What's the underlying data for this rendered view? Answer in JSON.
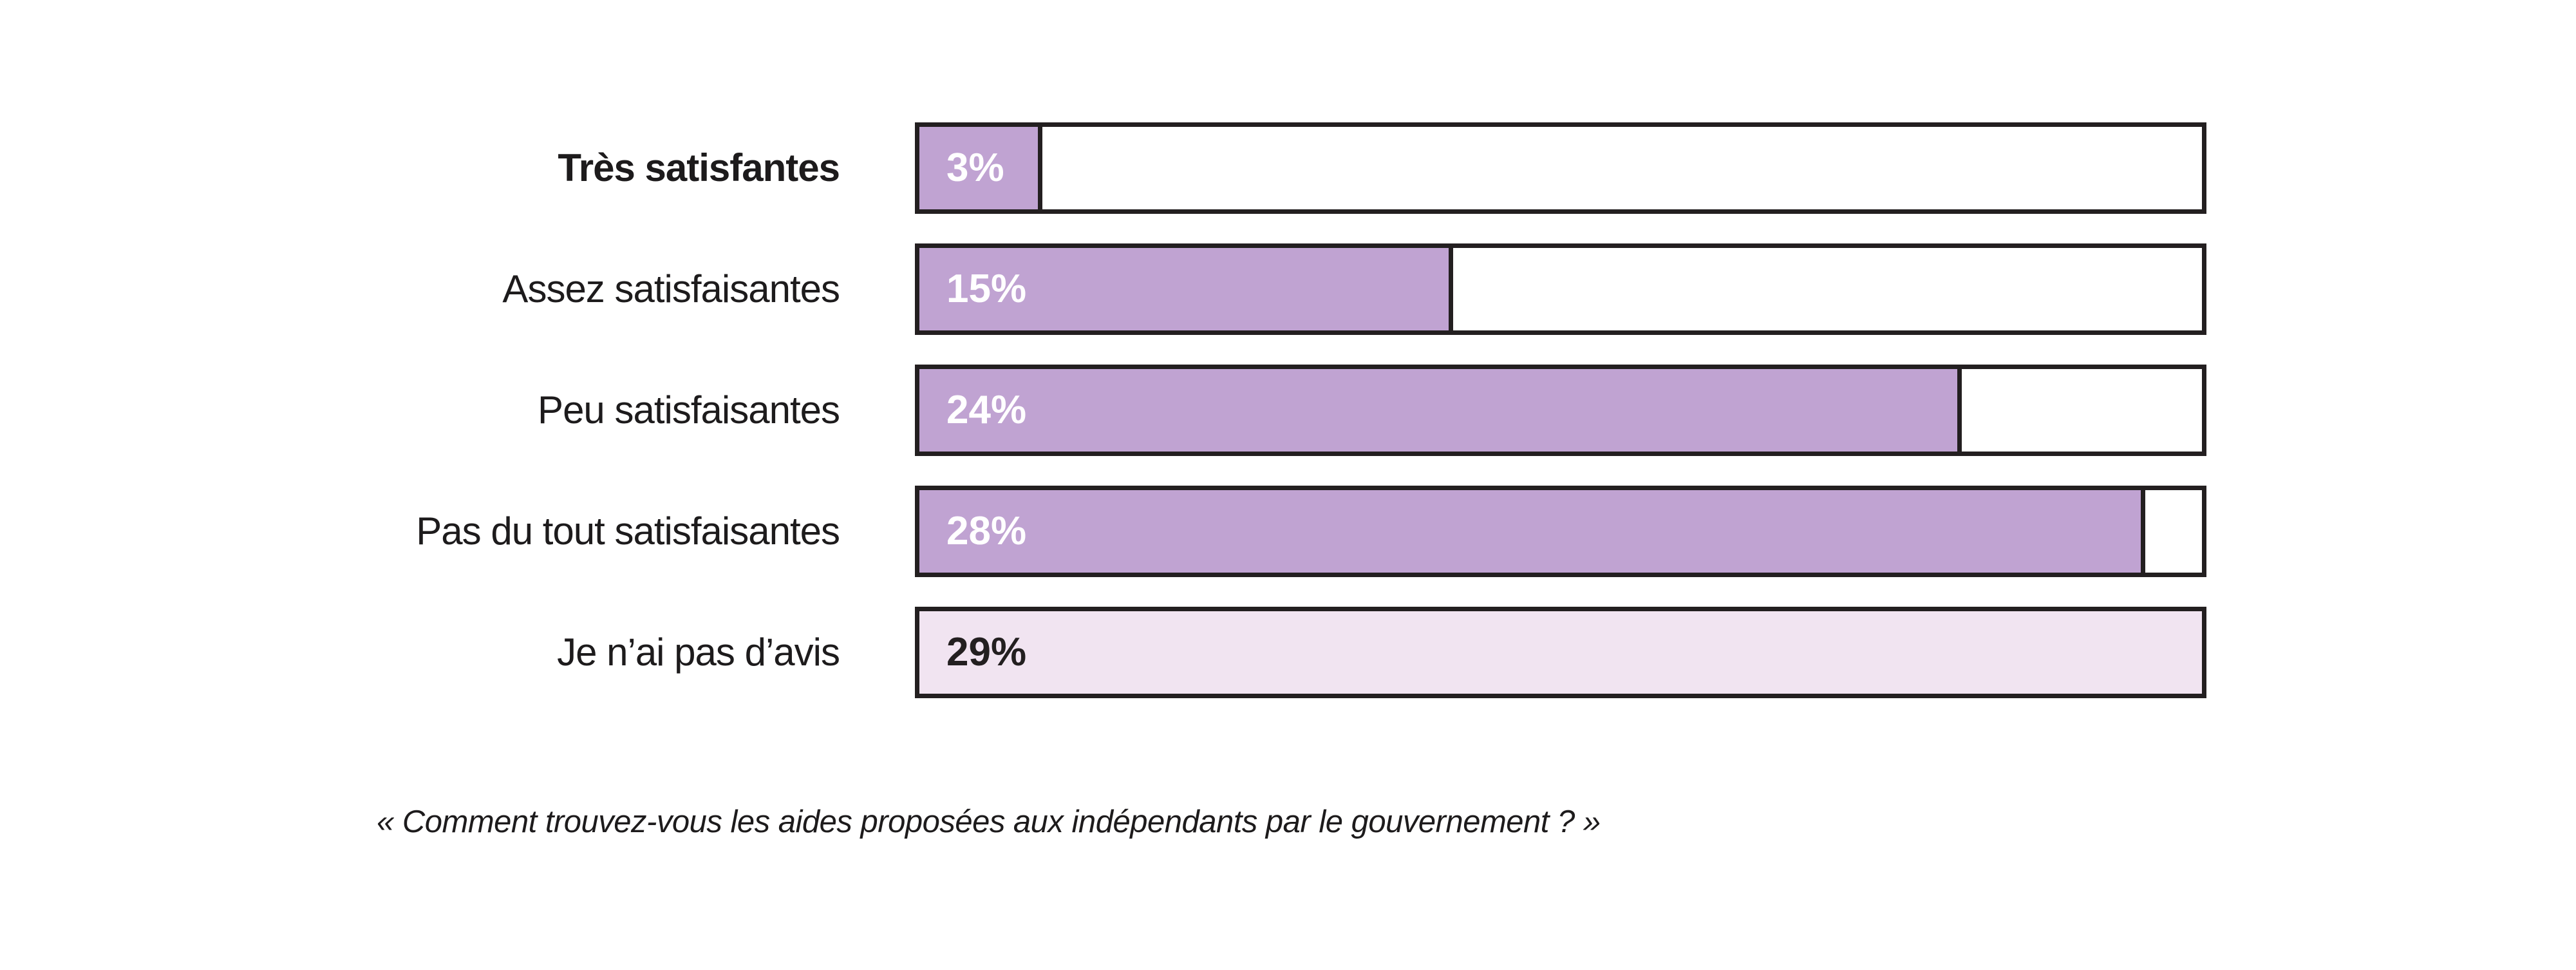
{
  "chart_data": {
    "type": "bar",
    "orientation": "horizontal",
    "title": "",
    "categories": [
      "Très satisfantes",
      "Assez satisfaisantes",
      "Peu satisfaisantes",
      "Pas du tout satisfaisantes",
      "Je n’ai pas d’avis"
    ],
    "values": [
      3,
      15,
      24,
      28,
      29
    ],
    "unit": "%",
    "grid": false,
    "axis_visible": false,
    "legend": null,
    "bars": [
      {
        "label": "Très satisfantes",
        "value": 3,
        "value_label": "3%",
        "width_pct": 9.6,
        "fill_color": "#c0a3d2",
        "value_text_color": "#ffffff",
        "label_bold": true,
        "partial": true
      },
      {
        "label": "Assez satisfaisantes",
        "value": 15,
        "value_label": "15%",
        "width_pct": 41.6,
        "fill_color": "#c0a3d2",
        "value_text_color": "#ffffff",
        "label_bold": false,
        "partial": true
      },
      {
        "label": "Peu satisfaisantes",
        "value": 24,
        "value_label": "24%",
        "width_pct": 81.3,
        "fill_color": "#c0a3d2",
        "value_text_color": "#ffffff",
        "label_bold": false,
        "partial": true
      },
      {
        "label": "Pas du tout satisfaisantes",
        "value": 28,
        "value_label": "28%",
        "width_pct": 95.6,
        "fill_color": "#c0a3d2",
        "value_text_color": "#ffffff",
        "label_bold": false,
        "partial": true
      },
      {
        "label": "Je n’ai pas d’avis",
        "value": 29,
        "value_label": "29%",
        "width_pct": 100,
        "fill_color": "#f1e4f1",
        "value_text_color": "#231f20",
        "label_bold": false,
        "partial": false
      }
    ]
  },
  "caption": "« Comment trouvez-vous les aides proposées aux indépendants par le gouvernement ? »",
  "colors": {
    "bar_fill": "#c0a3d2",
    "bar_fill_light": "#f1e4f1",
    "bar_border": "#231f20",
    "label_text": "#1d1b1c",
    "background": "#ffffff"
  }
}
